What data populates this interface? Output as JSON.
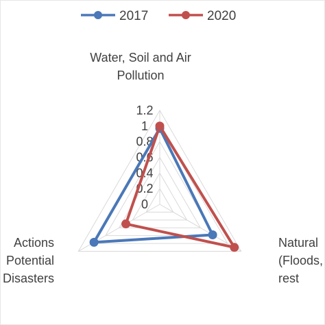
{
  "chart_data": {
    "type": "radar",
    "categories": [
      "Water, Soil and Air Pollution",
      "Natural (Floods, La rest",
      "Actions Potential Disasters"
    ],
    "category_lines": [
      [
        "Water, Soil and Air",
        "Pollution"
      ],
      [
        "Natural",
        "(Floods, La",
        "rest"
      ],
      [
        "Actions",
        "Potential",
        "Disasters"
      ]
    ],
    "series": [
      {
        "name": "2017",
        "values": [
          0.97,
          0.78,
          0.97
        ],
        "color": "#4a78b8"
      },
      {
        "name": "2020",
        "values": [
          1.0,
          1.1,
          0.5
        ],
        "color": "#c0504d"
      }
    ],
    "r_ticks": [
      "0",
      "0.2",
      "0.4",
      "0.6",
      "0.8",
      "1",
      "1.2"
    ],
    "r_range": [
      0,
      1.2
    ],
    "grid": true,
    "legend_position": "top"
  }
}
